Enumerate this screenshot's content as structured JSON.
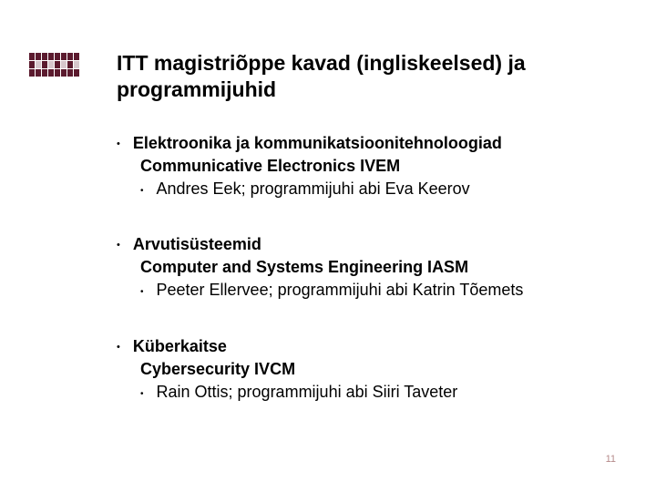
{
  "title": "ITT magistriõppe kavad (ingliskeelsed) ja programmijuhid",
  "items": [
    {
      "est": "Elektroonika ja kommunikatsioonitehnoloogiad",
      "eng": "Communicative Electronics IVEM",
      "person": "Andres Eek; programmijuhi abi Eva Keerov"
    },
    {
      "est": "Arvutisüsteemid",
      "eng": "Computer and Systems Engineering IASM",
      "person": "Peeter Ellervee; programmijuhi abi Katrin Tõemets"
    },
    {
      "est": "Küberkaitse",
      "eng": "Cybersecurity IVCM",
      "person": "Rain Ottis; programmijuhi abi Siiri Taveter"
    }
  ],
  "page_number": "11",
  "logo_colors": {
    "dark": "#5b1a2e",
    "light": "#d6c7cc"
  },
  "colors": {
    "text": "#000000",
    "pagenum": "#b58a8a",
    "background": "#ffffff"
  },
  "logo_pattern": [
    [
      1,
      1,
      1,
      1,
      1,
      1,
      1,
      1
    ],
    [
      1,
      0,
      1,
      0,
      1,
      0,
      1,
      0
    ],
    [
      1,
      1,
      1,
      1,
      1,
      1,
      1,
      1
    ]
  ]
}
